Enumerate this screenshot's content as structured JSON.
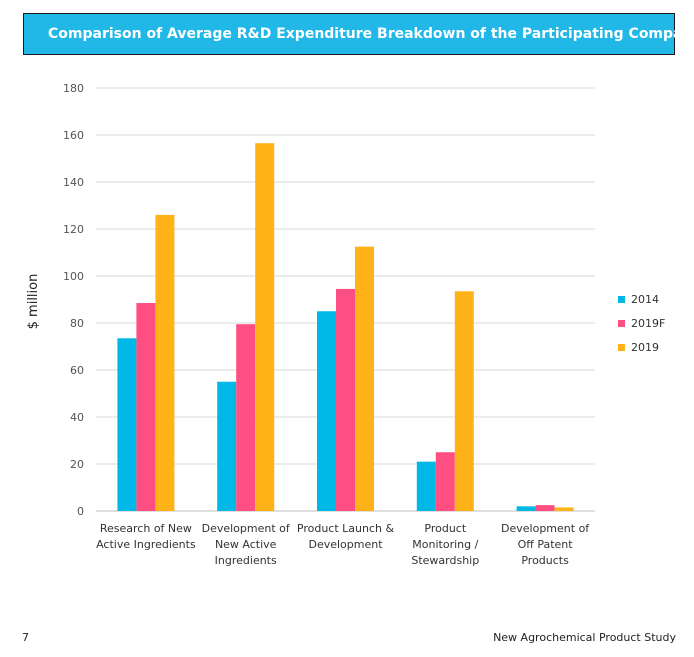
{
  "title": "Comparison of Average R&D Expenditure Breakdown of the Participating Companies",
  "footer": {
    "page_number": "7",
    "publication": "New Agrochemical Product Study"
  },
  "colors": {
    "banner": "#21b8e8",
    "series_2014": "#00b8e6",
    "series_2019F": "#ff4f82",
    "series_2019": "#ffb319",
    "grid": "#d9d9d9"
  },
  "chart_data": {
    "type": "bar",
    "title": "Comparison of Average R&D Expenditure Breakdown of the Participating Companies",
    "ylabel": "$ million",
    "xlabel": "",
    "ylim": [
      0,
      180
    ],
    "yticks": [
      0,
      20,
      40,
      60,
      80,
      100,
      120,
      140,
      160,
      180
    ],
    "grid": true,
    "legend_position": "right",
    "categories": [
      [
        "Research of New",
        "Active Ingredients"
      ],
      [
        "Development of",
        "New Active",
        "Ingredients"
      ],
      [
        "Product Launch &",
        "Development"
      ],
      [
        "Product",
        "Monitoring /",
        "Stewardship"
      ],
      [
        "Development of",
        "Off Patent",
        "Products"
      ]
    ],
    "series": [
      {
        "name": "2014",
        "color": "#00b8e6",
        "values": [
          73.5,
          55,
          85,
          21,
          2
        ]
      },
      {
        "name": "2019F",
        "color": "#ff4f82",
        "values": [
          88.5,
          79.5,
          94.5,
          25,
          2.5
        ]
      },
      {
        "name": "2019",
        "color": "#ffb319",
        "values": [
          126,
          156.5,
          112.5,
          93.5,
          1.5
        ]
      }
    ]
  }
}
